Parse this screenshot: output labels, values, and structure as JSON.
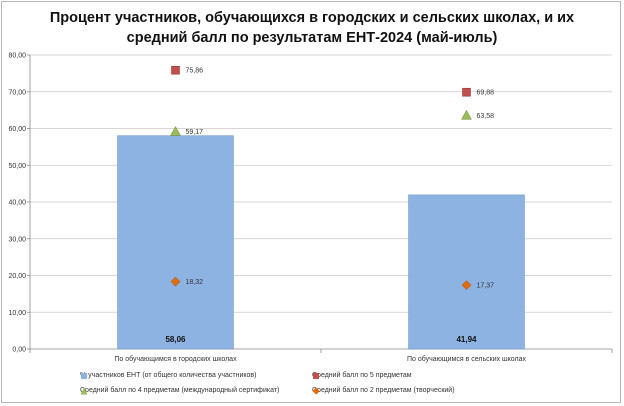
{
  "chart_data": {
    "type": "bar",
    "title_lines": [
      "Процент участников, обучающихся в городских и сельских школах, и их",
      "средний балл по результатам ЕНТ-2024 (май-июль)"
    ],
    "categories": [
      "По обучающимся  в городских школах",
      "По обучающимся в сельских школах"
    ],
    "ylim": [
      0,
      80
    ],
    "ytick_labels": [
      "0,00",
      "10,00",
      "20,00",
      "30,00",
      "40,00",
      "50,00",
      "60,00",
      "70,00",
      "80,00"
    ],
    "grid": true,
    "legend_position": "bottom",
    "series": [
      {
        "name": "% участников ЕНТ (от общего количества участников)",
        "kind": "bar",
        "marker": "square",
        "color": "#8db3e2",
        "values": [
          58.06,
          41.94
        ],
        "labels": [
          "58,06",
          "41,94"
        ]
      },
      {
        "name": "Средний  балл по 5 предметам",
        "kind": "scatter",
        "marker": "square",
        "color": "#c0504d",
        "values": [
          75.86,
          69.88
        ],
        "labels": [
          "75,86",
          "69,88"
        ]
      },
      {
        "name": "Средний балл по 4 предметам  (международный сертификат)",
        "kind": "scatter",
        "marker": "triangle",
        "color": "#9bbb59",
        "values": [
          59.17,
          63.58
        ],
        "labels": [
          "59,17",
          "63,58"
        ]
      },
      {
        "name": "Средний  балл по 2 предметам (творческий)",
        "kind": "scatter",
        "marker": "diamond",
        "color": "#e36c0a",
        "values": [
          18.32,
          17.37
        ],
        "labels": [
          "18,32",
          "17,37"
        ]
      }
    ]
  }
}
